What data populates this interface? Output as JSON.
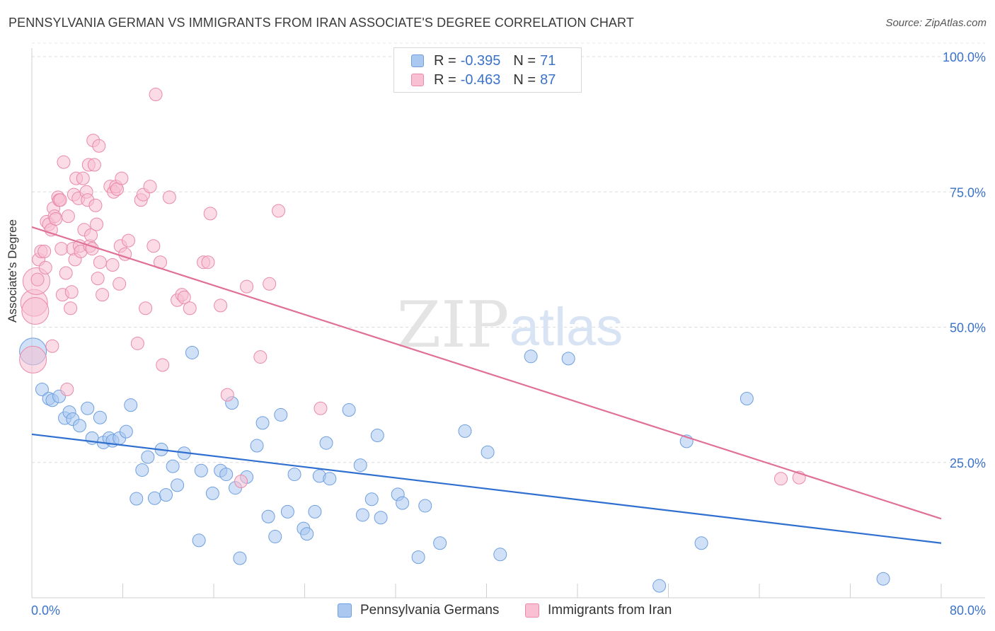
{
  "title": "PENNSYLVANIA GERMAN VS IMMIGRANTS FROM IRAN ASSOCIATE'S DEGREE CORRELATION CHART",
  "source": "Source: ZipAtlas.com",
  "watermark": {
    "zip": "ZIP",
    "atlas": "atlas"
  },
  "legend_top": [
    {
      "r_label": "R =",
      "r_value": "-0.395",
      "n_label": "N =",
      "n_value": "71",
      "color": "#aac8f0",
      "border": "#6f9fdf"
    },
    {
      "r_label": "R =",
      "r_value": "-0.463",
      "n_label": "N =",
      "n_value": "87",
      "color": "#f8c0d2",
      "border": "#e98aa8"
    }
  ],
  "chart_data": {
    "type": "scatter",
    "title": "PENNSYLVANIA GERMAN VS IMMIGRANTS FROM IRAN ASSOCIATE'S DEGREE CORRELATION CHART",
    "xlabel": "",
    "ylabel": "Associate's Degree",
    "xlim": [
      0,
      80
    ],
    "ylim": [
      0,
      100
    ],
    "x_tick_labels": [
      "0.0%",
      "80.0%"
    ],
    "y_tick_labels": [
      "100.0%",
      "75.0%",
      "50.0%",
      "25.0%"
    ],
    "y_tick_values": [
      100,
      75,
      50,
      25
    ],
    "grid": true,
    "legend_position": "bottom",
    "series": [
      {
        "name": "Pennsylvania Germans",
        "color": "#aac8f0",
        "stroke": "#6f9fdf",
        "trend_color": "#2f6fd0",
        "trend": {
          "x": [
            0,
            80
          ],
          "y": [
            30.2,
            10.1
          ]
        },
        "points": [
          [
            0.1,
            45.5
          ],
          [
            0.9,
            38.5
          ],
          [
            1.5,
            36.8
          ],
          [
            1.8,
            36.5
          ],
          [
            2.4,
            37.2
          ],
          [
            2.9,
            33.2
          ],
          [
            3.3,
            34.3
          ],
          [
            3.6,
            33.0
          ],
          [
            4.2,
            31.8
          ],
          [
            4.9,
            35.0
          ],
          [
            5.3,
            29.5
          ],
          [
            6.0,
            33.3
          ],
          [
            6.3,
            28.7
          ],
          [
            6.8,
            29.5
          ],
          [
            7.1,
            29.0
          ],
          [
            7.7,
            29.5
          ],
          [
            8.3,
            30.7
          ],
          [
            8.7,
            35.6
          ],
          [
            9.2,
            18.3
          ],
          [
            9.7,
            23.6
          ],
          [
            10.2,
            26.0
          ],
          [
            10.8,
            18.4
          ],
          [
            11.4,
            27.4
          ],
          [
            11.8,
            19.0
          ],
          [
            12.4,
            24.3
          ],
          [
            12.8,
            20.8
          ],
          [
            13.4,
            26.7
          ],
          [
            14.1,
            45.3
          ],
          [
            14.7,
            10.6
          ],
          [
            14.9,
            23.5
          ],
          [
            15.9,
            19.3
          ],
          [
            16.6,
            23.5
          ],
          [
            17.1,
            22.8
          ],
          [
            17.6,
            36.0
          ],
          [
            17.9,
            20.3
          ],
          [
            18.3,
            7.3
          ],
          [
            18.9,
            22.3
          ],
          [
            19.8,
            28.1
          ],
          [
            20.3,
            32.3
          ],
          [
            20.8,
            15.0
          ],
          [
            21.4,
            11.3
          ],
          [
            21.9,
            33.8
          ],
          [
            22.5,
            15.9
          ],
          [
            23.1,
            22.8
          ],
          [
            23.9,
            12.8
          ],
          [
            24.2,
            11.8
          ],
          [
            24.9,
            15.9
          ],
          [
            25.3,
            22.5
          ],
          [
            25.9,
            28.6
          ],
          [
            26.2,
            22.0
          ],
          [
            27.9,
            34.7
          ],
          [
            28.9,
            24.5
          ],
          [
            29.1,
            15.3
          ],
          [
            29.9,
            18.2
          ],
          [
            30.4,
            30.0
          ],
          [
            30.7,
            14.8
          ],
          [
            32.2,
            19.1
          ],
          [
            32.6,
            17.5
          ],
          [
            34.0,
            7.5
          ],
          [
            34.6,
            17.0
          ],
          [
            35.9,
            10.1
          ],
          [
            38.1,
            30.8
          ],
          [
            40.1,
            26.9
          ],
          [
            41.2,
            8.0
          ],
          [
            43.9,
            44.6
          ],
          [
            47.2,
            44.2
          ],
          [
            55.2,
            2.2
          ],
          [
            57.6,
            28.9
          ],
          [
            58.9,
            10.1
          ],
          [
            62.9,
            36.8
          ],
          [
            74.9,
            3.5
          ]
        ]
      },
      {
        "name": "Immigrants from Iran",
        "color": "#f8c0d2",
        "stroke": "#e98aa8",
        "trend_color": "#e07098",
        "trend": {
          "x": [
            0,
            80
          ],
          "y": [
            68.5,
            14.6
          ]
        },
        "points": [
          [
            0.1,
            44.0
          ],
          [
            0.2,
            54.5
          ],
          [
            0.3,
            53.0
          ],
          [
            0.4,
            58.5
          ],
          [
            0.5,
            58.8
          ],
          [
            0.6,
            62.5
          ],
          [
            0.8,
            64.0
          ],
          [
            1.1,
            64.0
          ],
          [
            1.2,
            61.0
          ],
          [
            1.3,
            69.5
          ],
          [
            1.5,
            69.0
          ],
          [
            1.7,
            68.0
          ],
          [
            1.8,
            46.5
          ],
          [
            1.9,
            72.0
          ],
          [
            2.0,
            70.5
          ],
          [
            2.1,
            70.0
          ],
          [
            2.3,
            74.0
          ],
          [
            2.4,
            73.5
          ],
          [
            2.5,
            73.5
          ],
          [
            2.6,
            64.5
          ],
          [
            2.7,
            56.0
          ],
          [
            2.8,
            80.5
          ],
          [
            3.0,
            60.0
          ],
          [
            3.1,
            38.5
          ],
          [
            3.2,
            70.5
          ],
          [
            3.4,
            53.5
          ],
          [
            3.5,
            56.5
          ],
          [
            3.6,
            64.5
          ],
          [
            3.7,
            74.5
          ],
          [
            3.8,
            62.5
          ],
          [
            3.9,
            77.5
          ],
          [
            4.1,
            73.8
          ],
          [
            4.2,
            65.0
          ],
          [
            4.3,
            64.0
          ],
          [
            4.5,
            77.5
          ],
          [
            4.6,
            68.0
          ],
          [
            4.8,
            75.0
          ],
          [
            4.9,
            73.5
          ],
          [
            5.0,
            80.0
          ],
          [
            5.1,
            65.0
          ],
          [
            5.2,
            67.0
          ],
          [
            5.3,
            64.5
          ],
          [
            5.4,
            84.5
          ],
          [
            5.5,
            80.0
          ],
          [
            5.6,
            72.5
          ],
          [
            5.7,
            69.0
          ],
          [
            5.8,
            59.0
          ],
          [
            5.9,
            83.5
          ],
          [
            6.0,
            62.0
          ],
          [
            6.2,
            56.0
          ],
          [
            6.9,
            76.0
          ],
          [
            7.1,
            61.5
          ],
          [
            7.2,
            75.0
          ],
          [
            7.4,
            76.0
          ],
          [
            7.5,
            75.5
          ],
          [
            7.7,
            58.0
          ],
          [
            7.8,
            65.0
          ],
          [
            7.9,
            77.5
          ],
          [
            8.2,
            63.5
          ],
          [
            8.5,
            66.0
          ],
          [
            9.3,
            47.0
          ],
          [
            9.6,
            73.5
          ],
          [
            9.8,
            74.5
          ],
          [
            10.0,
            53.5
          ],
          [
            10.4,
            76.0
          ],
          [
            10.7,
            65.0
          ],
          [
            10.9,
            93.0
          ],
          [
            11.3,
            62.0
          ],
          [
            11.5,
            43.0
          ],
          [
            12.1,
            74.0
          ],
          [
            12.8,
            55.0
          ],
          [
            13.2,
            56.0
          ],
          [
            13.4,
            55.5
          ],
          [
            13.9,
            53.5
          ],
          [
            15.1,
            62.0
          ],
          [
            15.5,
            62.0
          ],
          [
            15.7,
            71.0
          ],
          [
            16.6,
            54.0
          ],
          [
            17.2,
            37.5
          ],
          [
            18.4,
            21.5
          ],
          [
            18.9,
            57.5
          ],
          [
            20.1,
            44.5
          ],
          [
            20.9,
            58.0
          ],
          [
            21.7,
            71.5
          ],
          [
            25.4,
            35.0
          ],
          [
            65.9,
            22.0
          ],
          [
            67.5,
            22.2
          ]
        ]
      }
    ]
  }
}
